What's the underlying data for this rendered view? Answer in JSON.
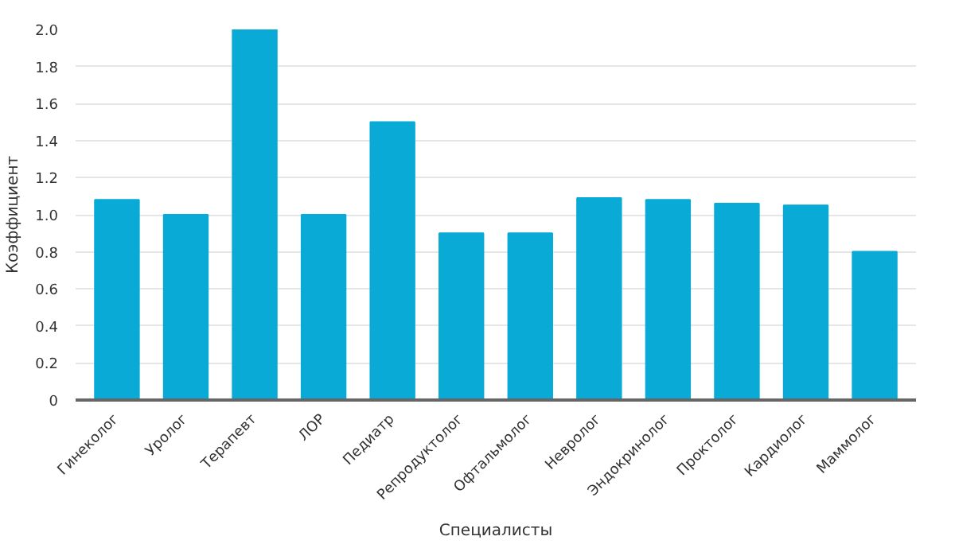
{
  "chart_data": {
    "type": "bar",
    "xlabel": "Специалисты",
    "ylabel": "Коэффициент",
    "categories": [
      "Гинеколог",
      "Уролог",
      "Терапевт",
      "ЛОР",
      "Педиатр",
      "Репродуктолог",
      "Офтальмолог",
      "Невролог",
      "Эндокринолог",
      "Проктолог",
      "Кардиолог",
      "Маммолог"
    ],
    "values": [
      1.08,
      1.0,
      2.0,
      1.0,
      1.5,
      0.9,
      0.9,
      1.09,
      1.08,
      1.06,
      1.05,
      0.8
    ],
    "color": "#09aad6",
    "ylim": [
      0,
      2.0
    ],
    "yticks": [
      0,
      {
        "value": 0.2,
        "label": "0.2"
      },
      {
        "value": 0.4,
        "label": "0.4"
      },
      {
        "value": 0.6,
        "label": "0.6"
      },
      {
        "value": 0.8,
        "label": "0.8"
      },
      {
        "value": 1.0,
        "label": "1.0"
      },
      {
        "value": 1.2,
        "label": "1.2"
      },
      {
        "value": 1.4,
        "label": "1.4"
      },
      {
        "value": 1.6,
        "label": "1.6"
      },
      {
        "value": 1.8,
        "label": "1.8"
      },
      {
        "value": 2.0,
        "label": "2.0"
      }
    ],
    "grid": "y"
  }
}
